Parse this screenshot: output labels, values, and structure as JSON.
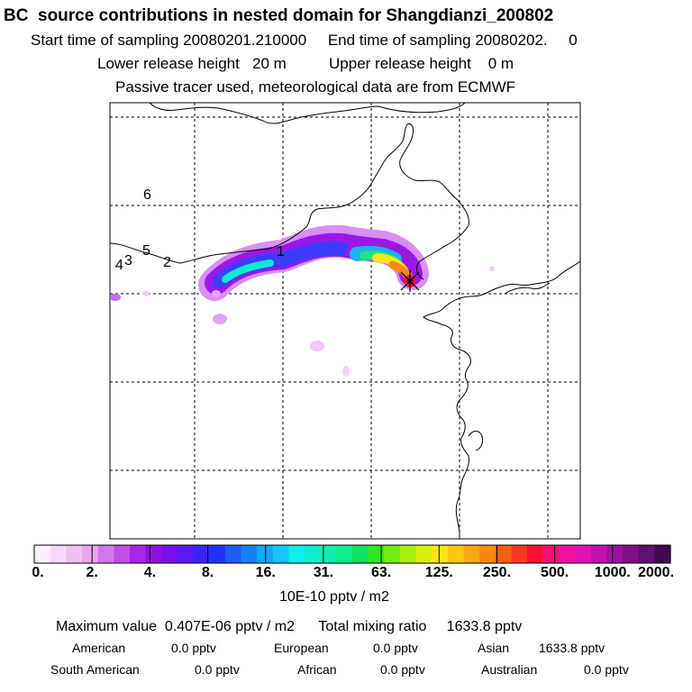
{
  "header": {
    "title": "BC  source contributions in nested domain for Shangdianzi_200802",
    "sampling_line": "Start time of sampling 20080201.210000     End time of sampling 20080202.     0",
    "release_line": "Lower release height   20 m          Upper release height    0 m",
    "tracer_line": "Passive tracer used, meteorological data are from ECMWF"
  },
  "map": {
    "markers": [
      {
        "label": "6"
      },
      {
        "label": "5"
      },
      {
        "label": "4"
      },
      {
        "label": "3"
      },
      {
        "label": "2"
      },
      {
        "label": "1"
      }
    ],
    "colors": {
      "coast": "#000000",
      "grid": "#000000"
    }
  },
  "colorbar": {
    "ticks": [
      "0.",
      "2.",
      "4.",
      "8.",
      "16.",
      "31.",
      "63.",
      "125.",
      "250.",
      "500.",
      "1000.",
      "2000."
    ],
    "units": "10E-10 pptv / m2",
    "colors": [
      "#fdf0fd",
      "#f8d8f8",
      "#f2bff2",
      "#eca6ee",
      "#d377ec",
      "#c04fe8",
      "#a725e6",
      "#9010e4",
      "#7a10f0",
      "#5c18f6",
      "#3c22fa",
      "#1f34fa",
      "#1a5cfa",
      "#1a80fa",
      "#18a4fa",
      "#14c4fa",
      "#10eeee",
      "#10eed0",
      "#10eeb0",
      "#10ee8a",
      "#10e060",
      "#30e820",
      "#70ee10",
      "#a8f010",
      "#d8f010",
      "#f8e810",
      "#f8c810",
      "#f8a810",
      "#f88810",
      "#f86010",
      "#f83a20",
      "#f81030",
      "#f81070",
      "#f010a0",
      "#e010b8",
      "#c010b0",
      "#a010a0",
      "#801088",
      "#601070",
      "#400a50"
    ]
  },
  "summary": {
    "max_line": "Maximum value  0.407E-06 pptv / m2      Total mixing ratio     1633.8 pptv",
    "row1": [
      {
        "label": "American",
        "value": "0.0 pptv"
      },
      {
        "label": "European",
        "value": "0.0 pptv"
      },
      {
        "label": "Asian",
        "value": "1633.8 pptv"
      }
    ],
    "row2": [
      {
        "label": "South American",
        "value": "0.0 pptv"
      },
      {
        "label": "African",
        "value": "0.0 pptv"
      },
      {
        "label": "Australian",
        "value": "0.0 pptv"
      }
    ]
  }
}
